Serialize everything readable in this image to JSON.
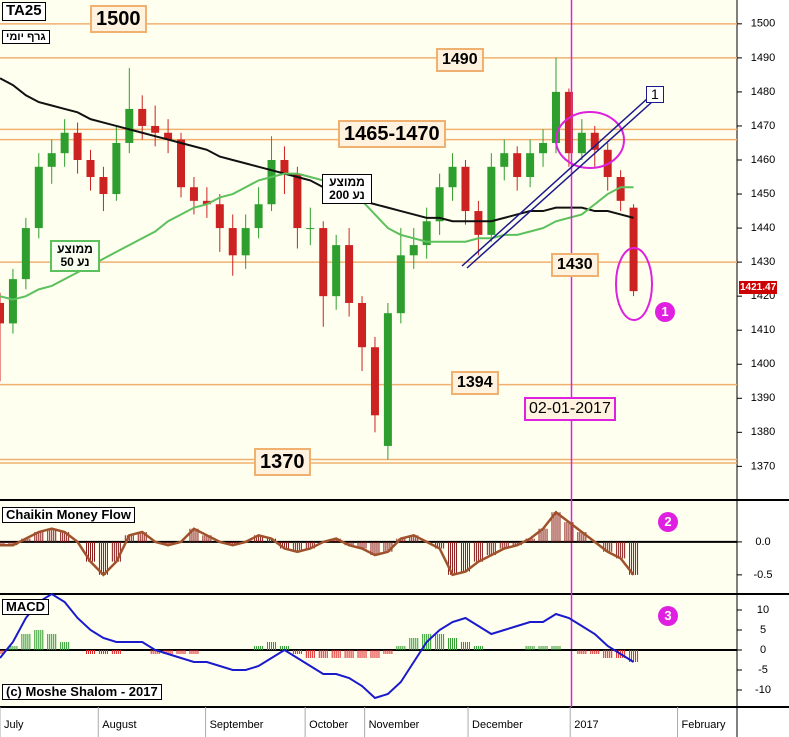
{
  "chart_data": [
    {
      "type": "candlestick",
      "title": "TA25",
      "subtitle": "גרף יומי",
      "xlim": [
        0,
        57
      ],
      "ylim": [
        1361,
        1507
      ],
      "yticks": [
        1370,
        1380,
        1390,
        1400,
        1410,
        1420,
        1430,
        1440,
        1450,
        1460,
        1470,
        1480,
        1490,
        1500
      ],
      "ohlc": {
        "up_color": "#2e9e2e",
        "down_color": "#cc2222",
        "open": [
          1418,
          1412,
          1425,
          1440,
          1458,
          1462,
          1468,
          1460,
          1455,
          1450,
          1465,
          1475,
          1470,
          1468,
          1466,
          1452,
          1448,
          1447,
          1440,
          1432,
          1440,
          1447,
          1460,
          1456,
          1440,
          1440,
          1420,
          1435,
          1418,
          1405,
          1376,
          1415,
          1432,
          1435,
          1442,
          1452,
          1458,
          1445,
          1438,
          1458,
          1462,
          1455,
          1462,
          1465,
          1480,
          1462,
          1468,
          1463,
          1455,
          1446
        ],
        "high": [
          1421,
          1428,
          1443,
          1462,
          1466,
          1472,
          1471,
          1463,
          1458,
          1470,
          1487,
          1479,
          1476,
          1472,
          1468,
          1455,
          1452,
          1450,
          1444,
          1444,
          1452,
          1467,
          1464,
          1458,
          1446,
          1442,
          1438,
          1440,
          1420,
          1408,
          1418,
          1440,
          1440,
          1446,
          1456,
          1462,
          1460,
          1448,
          1462,
          1466,
          1464,
          1466,
          1469,
          1490,
          1481,
          1472,
          1470,
          1465,
          1457,
          1447
        ],
        "low": [
          1395,
          1409,
          1422,
          1437,
          1453,
          1458,
          1456,
          1451,
          1445,
          1448,
          1462,
          1466,
          1464,
          1462,
          1449,
          1444,
          1443,
          1433,
          1426,
          1428,
          1437,
          1445,
          1450,
          1434,
          1435,
          1411,
          1416,
          1414,
          1398,
          1380,
          1372,
          1412,
          1428,
          1431,
          1438,
          1448,
          1441,
          1432,
          1436,
          1454,
          1451,
          1452,
          1458,
          1462,
          1458,
          1460,
          1458,
          1451,
          1445,
          1420
        ],
        "close": [
          1412,
          1425,
          1440,
          1458,
          1462,
          1468,
          1460,
          1455,
          1450,
          1465,
          1475,
          1470,
          1468,
          1466,
          1452,
          1448,
          1447,
          1440,
          1432,
          1440,
          1447,
          1460,
          1456,
          1440,
          1440,
          1420,
          1435,
          1418,
          1405,
          1385,
          1415,
          1432,
          1435,
          1442,
          1452,
          1458,
          1445,
          1438,
          1458,
          1462,
          1455,
          1462,
          1465,
          1480,
          1462,
          1468,
          1463,
          1455,
          1448,
          1421.47
        ]
      },
      "series": [
        {
          "name": "ממוצע נע 200",
          "color": "#111111",
          "values": [
            1484,
            1482,
            1479,
            1477,
            1476,
            1475,
            1474,
            1472,
            1471,
            1470,
            1469,
            1468,
            1467,
            1466,
            1465,
            1464,
            1463,
            1461,
            1460,
            1459,
            1458,
            1457,
            1456,
            1455,
            1454,
            1452,
            1451,
            1450,
            1448,
            1447,
            1446,
            1445,
            1444,
            1443,
            1443,
            1442,
            1442,
            1442,
            1442,
            1443,
            1444,
            1445,
            1445,
            1446,
            1446,
            1446,
            1445,
            1445,
            1444,
            1443
          ]
        },
        {
          "name": "ממוצע נע 50",
          "color": "#5cc05c",
          "values": [
            1420,
            1419,
            1420,
            1422,
            1423,
            1425,
            1427,
            1429,
            1431,
            1433,
            1435,
            1437,
            1439,
            1442,
            1444,
            1446,
            1447,
            1449,
            1450,
            1452,
            1454,
            1455,
            1456,
            1456,
            1455,
            1454,
            1453,
            1451,
            1448,
            1444,
            1440,
            1438,
            1437,
            1436,
            1436,
            1436,
            1436,
            1437,
            1437,
            1438,
            1438,
            1439,
            1440,
            1442,
            1443,
            1444,
            1447,
            1450,
            1452,
            1452
          ]
        }
      ],
      "levels": [
        1500,
        1490,
        1469,
        1466,
        1430,
        1394,
        1372,
        1371
      ],
      "level_color": "#f0b070",
      "marker": {
        "x": 44.2,
        "label": "02-01-2017",
        "color": "#dd22dd"
      },
      "annotations": [
        "1500",
        "1490",
        "1465-1470",
        "1430",
        "1394",
        "1370",
        "1",
        "1"
      ]
    },
    {
      "type": "oscillator",
      "title": "Chaikin Money Flow",
      "xlim": [
        0,
        57
      ],
      "ylim": [
        -0.73,
        0.56
      ],
      "yticks": [
        {
          "value": 0,
          "label": "0.0"
        },
        -0.5
      ],
      "color": "#8b1a1a",
      "line_color": "#a0522d",
      "values": [
        -0.05,
        -0.05,
        0.05,
        0.15,
        0.2,
        0.15,
        0.0,
        -0.3,
        -0.5,
        -0.3,
        0.1,
        0.15,
        0.0,
        -0.05,
        0.0,
        0.2,
        0.1,
        0.0,
        -0.05,
        0.0,
        0.1,
        0.05,
        -0.1,
        -0.15,
        -0.1,
        0.0,
        0.05,
        -0.05,
        -0.1,
        -0.2,
        -0.15,
        0.05,
        0.1,
        0.0,
        -0.1,
        -0.5,
        -0.45,
        -0.3,
        -0.2,
        -0.1,
        -0.05,
        0.05,
        0.2,
        0.45,
        0.3,
        0.15,
        0.0,
        -0.15,
        -0.25,
        -0.5
      ],
      "annotations": [
        "2"
      ]
    },
    {
      "type": "macd",
      "title": "MACD",
      "copyright": "(c) Moshe Shalom - 2017",
      "xlim": [
        0,
        57
      ],
      "ylim": [
        -13.75,
        13
      ],
      "yticks": [
        10,
        5,
        0,
        -5,
        -10
      ],
      "xticks": [
        {
          "value": 0,
          "label": "July"
        },
        {
          "value": 7.6,
          "label": "August"
        },
        {
          "value": 15.9,
          "label": "September"
        },
        {
          "value": 23.6,
          "label": "October"
        },
        {
          "value": 28.2,
          "label": "November"
        },
        {
          "value": 36.2,
          "label": "December"
        },
        {
          "value": 44.1,
          "label": "2017"
        },
        {
          "value": 52.4,
          "label": "February"
        }
      ],
      "line": {
        "color": "#1a1acc",
        "values": [
          -2,
          2,
          8,
          12,
          14,
          12,
          8,
          5,
          3,
          2,
          2,
          2,
          0,
          -1,
          -2,
          -3,
          -3,
          -4,
          -5,
          -5,
          -4,
          -2,
          0,
          -2,
          -4,
          -6,
          -6,
          -7,
          -9,
          -12,
          -11,
          -8,
          -3,
          2,
          5,
          7,
          8,
          6,
          4,
          5,
          6,
          7,
          7,
          9,
          8,
          6,
          4,
          1,
          -1,
          -3
        ]
      },
      "histogram": {
        "up_color": "#2a9a2a",
        "down_color": "#dd2222",
        "values": [
          -1,
          1,
          4,
          5,
          4,
          2,
          0,
          -1,
          -1,
          -1,
          0,
          0,
          -1,
          -1,
          -1,
          -1,
          0,
          0,
          0,
          0,
          1,
          2,
          1,
          -1,
          -2,
          -2,
          -2,
          -2,
          -2,
          -2,
          -1,
          1,
          3,
          4,
          4,
          3,
          2,
          1,
          0,
          0,
          0,
          1,
          1,
          1,
          0,
          -1,
          -1,
          -2,
          -2,
          -3
        ]
      },
      "annotations": [
        "3"
      ]
    }
  ]
}
